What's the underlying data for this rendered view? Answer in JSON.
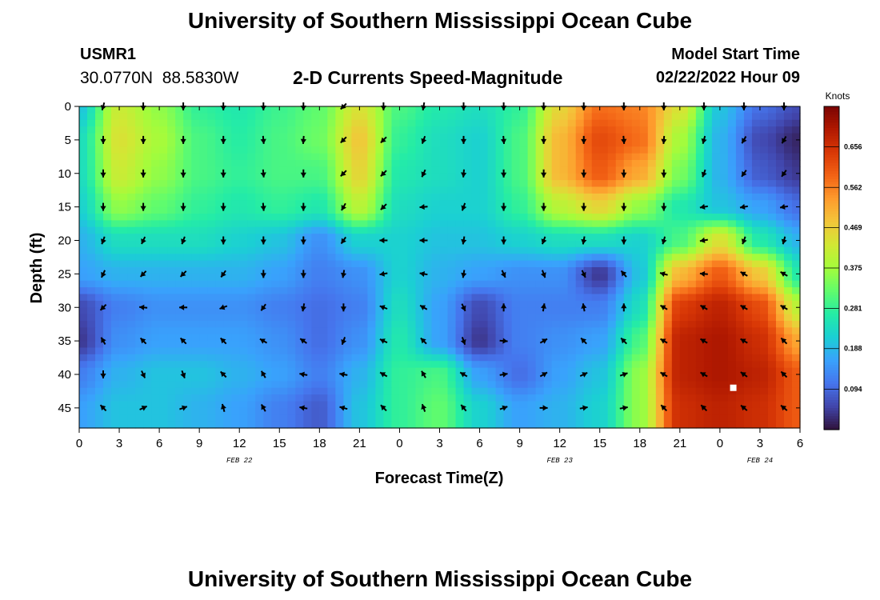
{
  "header": {
    "title": "University of Southern Mississippi Ocean Cube",
    "station": "USMR1",
    "coords": "30.0770N  88.5830W",
    "subtitle": "2-D Currents Speed-Magnitude",
    "model_start_label": "Model Start Time",
    "model_start_value": "02/22/2022 Hour 09"
  },
  "footer": {
    "title": "University of Southern Mississippi Ocean Cube"
  },
  "chart_data": {
    "type": "heatmap",
    "xlabel": "Forecast Time(Z)",
    "ylabel": "Depth (ft)",
    "x_tick_labels": [
      "0",
      "3",
      "6",
      "9",
      "12",
      "15",
      "18",
      "21",
      "0",
      "3",
      "6",
      "9",
      "12",
      "15",
      "18",
      "21",
      "0",
      "3",
      "6"
    ],
    "y_ticks": [
      0,
      5,
      10,
      15,
      20,
      25,
      30,
      35,
      40,
      45
    ],
    "ylim": [
      48,
      0
    ],
    "xlim_hours": [
      0,
      54
    ],
    "date_labels": [
      {
        "label": "FEB 22",
        "hour": 12
      },
      {
        "label": "FEB 23",
        "hour": 36
      },
      {
        "label": "FEB 24",
        "hour": 51
      }
    ],
    "colorbar": {
      "unit": "Knots",
      "ticks": [
        "0.656",
        "0.562",
        "0.469",
        "0.375",
        "0.281",
        "0.188",
        "0.094"
      ],
      "tick_values": [
        0.656,
        0.562,
        0.469,
        0.375,
        0.281,
        0.188,
        0.094
      ],
      "range": [
        0.0,
        0.75
      ],
      "colormap": [
        "#30123b",
        "#4145ab",
        "#4675ed",
        "#39a2fc",
        "#1bcfd4",
        "#24eca6",
        "#61fc6c",
        "#a4fc3b",
        "#d1e834",
        "#f3c63a",
        "#fe9b2d",
        "#f36315",
        "#d93806",
        "#b11901",
        "#7a0402"
      ]
    },
    "speed_grid": {
      "x_hours": [
        0,
        3,
        6,
        9,
        12,
        15,
        18,
        21,
        24,
        27,
        30,
        33,
        36,
        39,
        42,
        45,
        48,
        51,
        54
      ],
      "depths": [
        0,
        5,
        10,
        15,
        20,
        25,
        30,
        35,
        40,
        45,
        48
      ],
      "values": [
        [
          0.2,
          0.42,
          0.36,
          0.28,
          0.26,
          0.29,
          0.32,
          0.44,
          0.3,
          0.26,
          0.24,
          0.28,
          0.46,
          0.58,
          0.56,
          0.44,
          0.2,
          0.1,
          0.06
        ],
        [
          0.24,
          0.44,
          0.38,
          0.3,
          0.27,
          0.3,
          0.33,
          0.48,
          0.28,
          0.24,
          0.22,
          0.3,
          0.5,
          0.62,
          0.58,
          0.38,
          0.18,
          0.06,
          0.02
        ],
        [
          0.24,
          0.42,
          0.36,
          0.3,
          0.28,
          0.3,
          0.3,
          0.46,
          0.26,
          0.24,
          0.22,
          0.3,
          0.5,
          0.6,
          0.52,
          0.34,
          0.18,
          0.08,
          0.04
        ],
        [
          0.22,
          0.36,
          0.32,
          0.28,
          0.26,
          0.28,
          0.26,
          0.4,
          0.24,
          0.22,
          0.22,
          0.28,
          0.4,
          0.46,
          0.36,
          0.26,
          0.2,
          0.16,
          0.1
        ],
        [
          0.18,
          0.24,
          0.24,
          0.24,
          0.22,
          0.2,
          0.14,
          0.22,
          0.22,
          0.2,
          0.2,
          0.22,
          0.24,
          0.24,
          0.22,
          0.3,
          0.44,
          0.26,
          0.18
        ],
        [
          0.16,
          0.18,
          0.18,
          0.18,
          0.18,
          0.16,
          0.12,
          0.14,
          0.22,
          0.18,
          0.16,
          0.14,
          0.14,
          0.04,
          0.2,
          0.5,
          0.6,
          0.48,
          0.26
        ],
        [
          0.06,
          0.12,
          0.14,
          0.14,
          0.14,
          0.12,
          0.1,
          0.12,
          0.24,
          0.16,
          0.06,
          0.12,
          0.12,
          0.12,
          0.24,
          0.64,
          0.68,
          0.62,
          0.4
        ],
        [
          0.04,
          0.14,
          0.16,
          0.16,
          0.16,
          0.14,
          0.1,
          0.14,
          0.26,
          0.16,
          0.04,
          0.12,
          0.14,
          0.16,
          0.3,
          0.68,
          0.7,
          0.66,
          0.52
        ],
        [
          0.12,
          0.18,
          0.2,
          0.2,
          0.18,
          0.16,
          0.12,
          0.18,
          0.28,
          0.3,
          0.16,
          0.1,
          0.16,
          0.2,
          0.36,
          0.68,
          0.7,
          0.68,
          0.6
        ],
        [
          0.16,
          0.2,
          0.2,
          0.18,
          0.16,
          0.12,
          0.08,
          0.2,
          0.28,
          0.32,
          0.22,
          0.16,
          0.18,
          0.22,
          0.36,
          0.66,
          0.68,
          0.66,
          0.6
        ],
        [
          0.16,
          0.2,
          0.2,
          0.18,
          0.16,
          0.12,
          0.08,
          0.2,
          0.28,
          0.32,
          0.22,
          0.16,
          0.18,
          0.22,
          0.36,
          0.66,
          0.68,
          0.66,
          0.6
        ]
      ]
    },
    "vectors": {
      "x_hours": [
        0,
        3,
        6,
        9,
        12,
        15,
        18,
        21,
        24,
        27,
        30,
        33,
        36,
        39,
        42,
        45,
        48,
        51
      ],
      "depths": [
        0,
        5,
        10,
        15,
        20,
        25,
        30,
        35,
        40,
        45
      ],
      "directions_deg": [
        [
          195,
          180,
          180,
          180,
          180,
          180,
          225,
          180,
          190,
          180,
          180,
          180,
          180,
          180,
          180,
          180,
          180,
          180
        ],
        [
          180,
          180,
          180,
          180,
          175,
          185,
          225,
          225,
          200,
          180,
          175,
          180,
          180,
          175,
          185,
          195,
          210,
          210
        ],
        [
          180,
          180,
          180,
          180,
          175,
          180,
          225,
          225,
          205,
          185,
          180,
          180,
          180,
          180,
          180,
          200,
          215,
          215
        ],
        [
          180,
          180,
          180,
          180,
          175,
          180,
          210,
          225,
          265,
          200,
          180,
          180,
          180,
          180,
          180,
          260,
          260,
          260
        ],
        [
          200,
          205,
          200,
          180,
          180,
          180,
          215,
          270,
          270,
          190,
          180,
          200,
          190,
          180,
          195,
          260,
          200,
          195
        ],
        [
          205,
          225,
          225,
          215,
          180,
          180,
          190,
          260,
          280,
          190,
          155,
          160,
          155,
          320,
          285,
          275,
          300,
          300
        ],
        [
          225,
          275,
          270,
          250,
          215,
          190,
          180,
          290,
          300,
          155,
          0,
          10,
          350,
          0,
          300,
          300,
          300,
          300
        ],
        [
          330,
          315,
          315,
          315,
          300,
          305,
          200,
          295,
          315,
          160,
          95,
          60,
          315,
          315,
          300,
          300,
          300,
          315
        ],
        [
          180,
          155,
          160,
          315,
          330,
          280,
          280,
          300,
          330,
          300,
          80,
          60,
          65,
          70,
          300,
          300,
          305,
          315
        ],
        [
          315,
          65,
          70,
          345,
          330,
          280,
          285,
          315,
          340,
          320,
          70,
          90,
          80,
          80,
          315,
          315,
          310,
          310
        ]
      ]
    },
    "marker": {
      "hour": 49,
      "depth": 42,
      "color": "#ffffff"
    }
  }
}
